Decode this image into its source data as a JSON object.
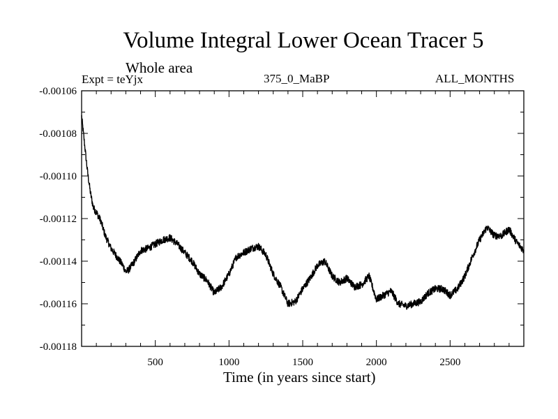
{
  "chart_data": {
    "type": "line",
    "title": "Volume Integral Lower Ocean Tracer 5",
    "subtitle": "Whole area",
    "experiment_label": "Expt = teYjx",
    "period_label": "375_0_MaBP",
    "season_label": "ALL_MONTHS",
    "xlabel": "Time (in years since start)",
    "ylabel": "",
    "xlim": [
      0,
      3000
    ],
    "ylim": [
      -0.00118,
      -0.00106
    ],
    "x_ticks": [
      500,
      1000,
      1500,
      2000,
      2500
    ],
    "x_tick_labels": [
      "500",
      "1000",
      "1500",
      "2000",
      "2500"
    ],
    "y_ticks": [
      -0.00118,
      -0.00116,
      -0.00114,
      -0.00112,
      -0.0011,
      -0.00108,
      -0.00106
    ],
    "y_tick_labels": [
      "-0.00118",
      "-0.00116",
      "-0.00114",
      "-0.00112",
      "-0.00110",
      "-0.00108",
      "-0.00106"
    ],
    "grid": false,
    "series": [
      {
        "name": "Lower Ocean Tracer 5",
        "color": "#000000",
        "x": [
          0,
          20,
          40,
          60,
          80,
          100,
          130,
          160,
          200,
          240,
          280,
          300,
          320,
          360,
          400,
          450,
          500,
          550,
          600,
          650,
          700,
          750,
          800,
          850,
          900,
          950,
          1000,
          1050,
          1100,
          1150,
          1200,
          1250,
          1300,
          1350,
          1400,
          1450,
          1500,
          1550,
          1600,
          1650,
          1700,
          1750,
          1800,
          1850,
          1900,
          1950,
          2000,
          2050,
          2100,
          2150,
          2200,
          2250,
          2300,
          2350,
          2400,
          2450,
          2500,
          2550,
          2600,
          2650,
          2700,
          2750,
          2800,
          2850,
          2900,
          2950,
          3000
        ],
        "values": [
          -0.001072,
          -0.001085,
          -0.001098,
          -0.001108,
          -0.001115,
          -0.001117,
          -0.001121,
          -0.001128,
          -0.001134,
          -0.001138,
          -0.001142,
          -0.001145,
          -0.001144,
          -0.00114,
          -0.001135,
          -0.001134,
          -0.001132,
          -0.00113,
          -0.001129,
          -0.001132,
          -0.001136,
          -0.00114,
          -0.001146,
          -0.001149,
          -0.001155,
          -0.001152,
          -0.001146,
          -0.001138,
          -0.001136,
          -0.001134,
          -0.001133,
          -0.001137,
          -0.001146,
          -0.001152,
          -0.00116,
          -0.001159,
          -0.001153,
          -0.001148,
          -0.001142,
          -0.00114,
          -0.001147,
          -0.00115,
          -0.001148,
          -0.001152,
          -0.001151,
          -0.001147,
          -0.001158,
          -0.001156,
          -0.001154,
          -0.00116,
          -0.001161,
          -0.00116,
          -0.001159,
          -0.001155,
          -0.001153,
          -0.001153,
          -0.001156,
          -0.001153,
          -0.001147,
          -0.001138,
          -0.00113,
          -0.001124,
          -0.001128,
          -0.001128,
          -0.001125,
          -0.001131,
          -0.001135
        ]
      }
    ]
  }
}
